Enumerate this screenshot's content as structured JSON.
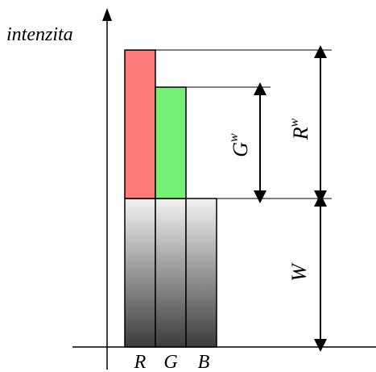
{
  "diagram": {
    "y_axis_label": "intenzita",
    "bar_labels": [
      "R",
      "G",
      "B"
    ],
    "dimension_labels": {
      "white": "W",
      "red_excess": "R",
      "red_excess_sup": "w",
      "green_excess": "G",
      "green_excess_sup": "w"
    },
    "colors": {
      "red": "#ff7b7b",
      "green": "#77f077",
      "gray_light": "#f2f2f2",
      "gray_dark": "#3c3c3c"
    }
  }
}
